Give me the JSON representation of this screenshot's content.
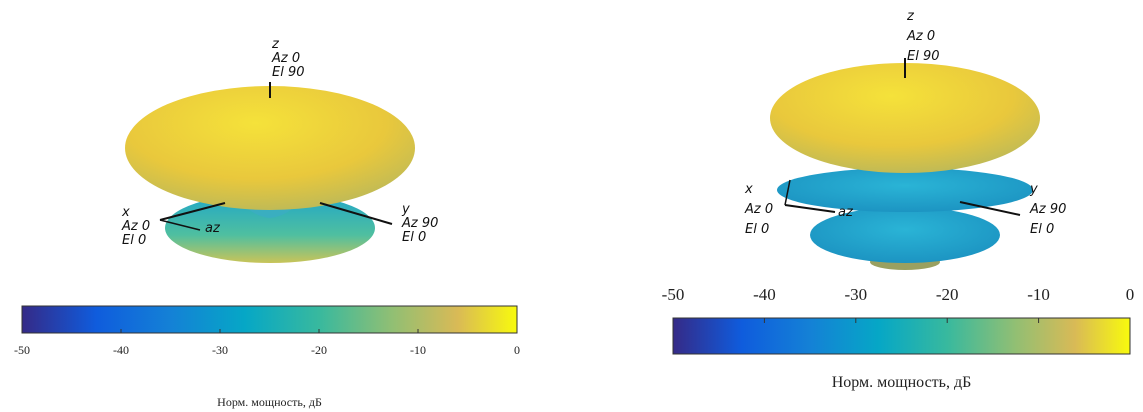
{
  "chart_data": [
    {
      "type": "pattern3d",
      "z_axis_labels": [
        "z",
        "Az 0",
        "El 90"
      ],
      "x_axis_labels": [
        "x",
        "Az 0",
        "El 0"
      ],
      "y_axis_labels": [
        "y",
        "Az 90",
        "El 0"
      ],
      "direction_label": "az",
      "xlim": [
        -50,
        0
      ],
      "xticks": [
        -50,
        -40,
        -30,
        -20,
        -10,
        0
      ],
      "xlabel": "Норм. мощность, дБ"
    },
    {
      "type": "pattern3d",
      "z_axis_labels": [
        "z",
        "Az 0",
        "El 90"
      ],
      "x_axis_labels": [
        "x",
        "Az 0",
        "El 0"
      ],
      "y_axis_labels": [
        "y",
        "Az 90",
        "El 0"
      ],
      "direction_label": "az",
      "xlim": [
        -50,
        0
      ],
      "xticks": [
        -50,
        -40,
        -30,
        -20,
        -10,
        0
      ],
      "xlabel": "Норм. мощность, дБ"
    }
  ]
}
